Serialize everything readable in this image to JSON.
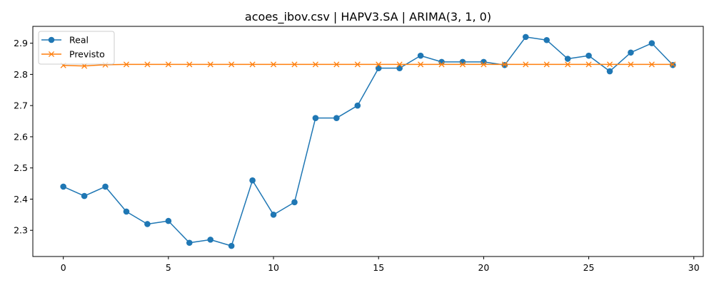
{
  "chart_data": {
    "type": "line",
    "title": "acoes_ibov.csv | HAPV3.SA | ARIMA(3, 1, 0)",
    "xlabel": "",
    "ylabel": "",
    "xlim": [
      -1.45,
      30.45
    ],
    "ylim": [
      2.216,
      2.954
    ],
    "xticks": [
      0,
      5,
      10,
      15,
      20,
      25,
      30
    ],
    "yticks": [
      2.3,
      2.4,
      2.5,
      2.6,
      2.7,
      2.8,
      2.9
    ],
    "x": [
      0,
      1,
      2,
      3,
      4,
      5,
      6,
      7,
      8,
      9,
      10,
      11,
      12,
      13,
      14,
      15,
      16,
      17,
      18,
      19,
      20,
      21,
      22,
      23,
      24,
      25,
      26,
      27,
      28,
      29
    ],
    "series": [
      {
        "name": "Real",
        "color": "#1f77b4",
        "marker": "circle",
        "values": [
          2.44,
          2.41,
          2.44,
          2.36,
          2.32,
          2.33,
          2.26,
          2.27,
          2.25,
          2.46,
          2.35,
          2.39,
          2.66,
          2.66,
          2.7,
          2.82,
          2.82,
          2.86,
          2.84,
          2.84,
          2.84,
          2.83,
          2.92,
          2.91,
          2.85,
          2.86,
          2.81,
          2.87,
          2.9,
          2.83
        ]
      },
      {
        "name": "Previsto",
        "color": "#ff7f0e",
        "marker": "x",
        "values": [
          2.829,
          2.827,
          2.831,
          2.832,
          2.832,
          2.832,
          2.832,
          2.832,
          2.832,
          2.832,
          2.832,
          2.832,
          2.832,
          2.832,
          2.832,
          2.832,
          2.832,
          2.832,
          2.832,
          2.832,
          2.832,
          2.832,
          2.832,
          2.832,
          2.832,
          2.832,
          2.832,
          2.832,
          2.832,
          2.832
        ]
      }
    ],
    "legend_position": "top-left",
    "grid": false
  }
}
